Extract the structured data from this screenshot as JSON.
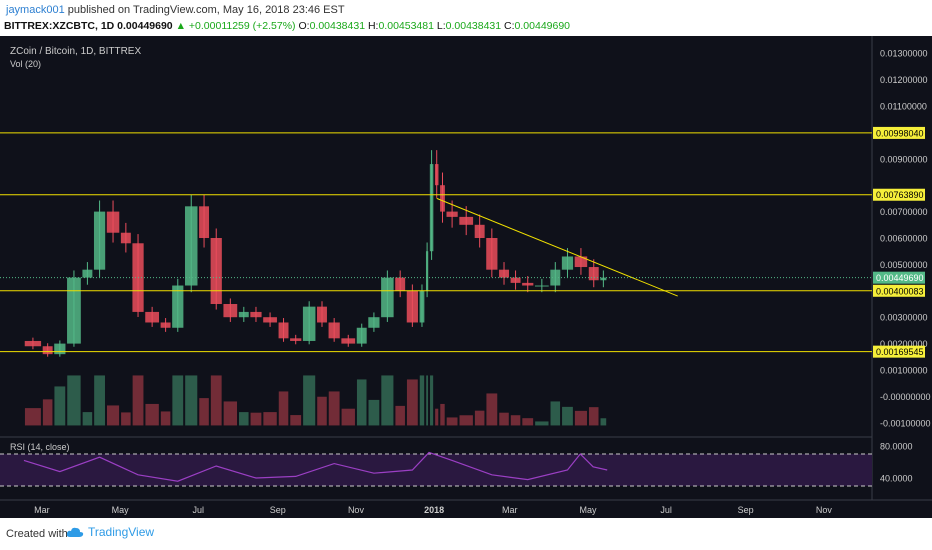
{
  "header": {
    "author": "jaymack001",
    "published_text": "published on TradingView.com, May 16, 2018 23:46 EST",
    "symbol": "BITTREX:XZCBTC, 1D",
    "price": "0.00449690",
    "change": "+0.00011259 (+2.57%)",
    "o_label": "O:",
    "o_value": "0.00438431",
    "h_label": "H:",
    "h_value": "0.00453481",
    "l_label": "L:",
    "l_value": "0.00438431",
    "c_label": "C:",
    "c_value": "0.00449690"
  },
  "chart_title": "ZCoin / Bitcoin, 1D, BITTREX",
  "vol_label": "Vol (20)",
  "rsi_label": "RSI (14, close)",
  "footer": {
    "created_with": "Created with",
    "brand": "TradingView"
  },
  "colors": {
    "background": "#0f111a",
    "up": "#53b987",
    "down": "#eb4d5c",
    "level_line": "#f0e000",
    "rsi_line": "#9b3fc4",
    "rsi_band": "#2a1840",
    "axis_text": "#cccccc",
    "label_bg": "#f6ef3a"
  },
  "chart_data": [
    {
      "type": "candlestick",
      "title": "ZCoin / Bitcoin, 1D, BITTREX",
      "x_tick_labels": [
        "Mar",
        "May",
        "Jul",
        "Sep",
        "Nov",
        "2018",
        "Mar",
        "May",
        "Jul",
        "Sep",
        "Nov"
      ],
      "y_tick_labels": [
        "0.01300000",
        "0.01200000",
        "0.01100000",
        "0.00900000",
        "0.00700000",
        "0.00600000",
        "0.00500000",
        "0.00300000",
        "0.00200000",
        "0.00100000",
        "-0.00000000",
        "-0.00100000"
      ],
      "ylim": [
        -0.0015,
        0.0135
      ],
      "last_price_label": "0.00449690",
      "horizontal_levels": [
        {
          "value": 0.0099804,
          "label": "0.00998040"
        },
        {
          "value": 0.0076389,
          "label": "0.00763890"
        },
        {
          "value": 0.0040008,
          "label": "0.00400083"
        },
        {
          "value": 0.00169545,
          "label": "0.00169545"
        }
      ],
      "trendline": {
        "x": [
          "2018-01-03",
          "2018-07-10"
        ],
        "y": [
          0.0075,
          0.0038
        ]
      },
      "close_series": {
        "x": [
          "2017-02-15",
          "2017-03-01",
          "2017-03-10",
          "2017-03-20",
          "2017-04-01",
          "2017-04-10",
          "2017-04-20",
          "2017-05-01",
          "2017-05-10",
          "2017-05-20",
          "2017-06-01",
          "2017-06-10",
          "2017-06-20",
          "2017-07-01",
          "2017-07-10",
          "2017-07-20",
          "2017-08-01",
          "2017-08-10",
          "2017-08-20",
          "2017-09-01",
          "2017-09-10",
          "2017-09-20",
          "2017-10-01",
          "2017-10-10",
          "2017-10-20",
          "2017-11-01",
          "2017-11-10",
          "2017-11-20",
          "2017-12-01",
          "2017-12-10",
          "2017-12-20",
          "2017-12-25",
          "2017-12-28",
          "2018-01-01",
          "2018-01-05",
          "2018-01-10",
          "2018-01-20",
          "2018-02-01",
          "2018-02-10",
          "2018-02-20",
          "2018-03-01",
          "2018-03-10",
          "2018-03-20",
          "2018-04-01",
          "2018-04-10",
          "2018-04-20",
          "2018-05-01",
          "2018-05-10",
          "2018-05-16"
        ],
        "y": [
          0.0021,
          0.0019,
          0.0016,
          0.002,
          0.0045,
          0.0048,
          0.007,
          0.0062,
          0.0058,
          0.0032,
          0.0028,
          0.0026,
          0.0042,
          0.0072,
          0.006,
          0.0035,
          0.003,
          0.0032,
          0.003,
          0.0028,
          0.0022,
          0.0021,
          0.0034,
          0.0028,
          0.0022,
          0.002,
          0.0026,
          0.003,
          0.0045,
          0.004,
          0.0028,
          0.004,
          0.0055,
          0.0088,
          0.008,
          0.007,
          0.0068,
          0.0065,
          0.006,
          0.0048,
          0.0045,
          0.0043,
          0.0042,
          0.0042,
          0.0048,
          0.0053,
          0.0049,
          0.0044,
          0.0045
        ]
      }
    },
    {
      "type": "bar",
      "title": "Vol (20)",
      "note": "volume bars with 20-period moving average"
    },
    {
      "type": "line",
      "title": "RSI (14, close)",
      "y_tick_labels": [
        "80.0000",
        "40.0000"
      ],
      "ylim": [
        15,
        90
      ],
      "band": [
        30,
        70
      ],
      "x": [
        "2017-02-15",
        "2017-03-15",
        "2017-04-15",
        "2017-05-15",
        "2017-06-15",
        "2017-07-15",
        "2017-08-15",
        "2017-09-15",
        "2017-10-15",
        "2017-11-15",
        "2017-12-15",
        "2017-12-28",
        "2018-01-15",
        "2018-02-15",
        "2018-03-15",
        "2018-04-15",
        "2018-04-25",
        "2018-05-05",
        "2018-05-16"
      ],
      "y": [
        62,
        48,
        66,
        44,
        36,
        55,
        40,
        42,
        58,
        46,
        50,
        72,
        62,
        44,
        38,
        50,
        70,
        54,
        50
      ]
    }
  ]
}
